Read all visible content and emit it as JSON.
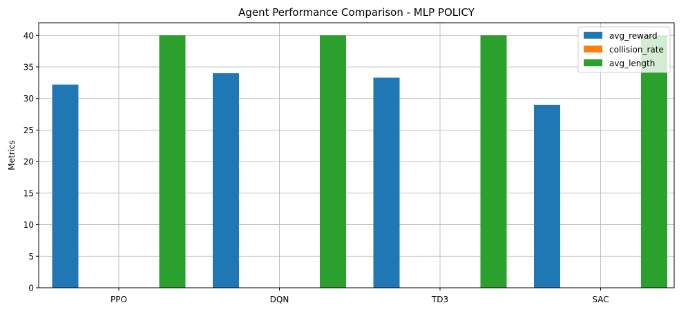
{
  "chart_data": {
    "type": "bar",
    "title": "Agent Performance Comparison - MLP POLICY",
    "xlabel": "",
    "ylabel": "Metrics",
    "categories": [
      "PPO",
      "DQN",
      "TD3",
      "SAC"
    ],
    "series": [
      {
        "name": "avg_reward",
        "color": "#1f77b4",
        "values": [
          32.2,
          34.0,
          33.3,
          29.0
        ]
      },
      {
        "name": "collision_rate",
        "color": "#ff7f0e",
        "values": [
          0,
          0,
          0,
          0
        ]
      },
      {
        "name": "avg_length",
        "color": "#2ca02c",
        "values": [
          40,
          40,
          40,
          40
        ]
      }
    ],
    "ylim": [
      0,
      42
    ],
    "yticks": [
      0,
      5,
      10,
      15,
      20,
      25,
      30,
      35,
      40
    ],
    "grid": true,
    "legend_position": "top-right"
  }
}
